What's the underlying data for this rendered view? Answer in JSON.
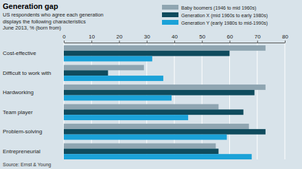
{
  "chart_data": {
    "type": "bar",
    "orientation": "horizontal",
    "title": "Generation gap",
    "subtitle": [
      "US respondents who agree each generation",
      "displays the following characteristics",
      "June 2013, % (born from)"
    ],
    "source": "Source: Ernst & Young",
    "categories": [
      "Cost-effective",
      "Difficult to work with",
      "Hardworking",
      "Team player",
      "Problem-solving",
      "Entrepreneurial"
    ],
    "series": [
      {
        "name": "Baby boomers (1946 to mid 1960s)",
        "color": "#8fa5b1",
        "values": [
          73,
          29,
          73,
          56,
          67,
          55
        ]
      },
      {
        "name": "Generation X (mid 1960s to early 1980s)",
        "color": "#0f4b5d",
        "values": [
          60,
          16,
          69,
          65,
          73,
          56
        ]
      },
      {
        "name": "Generation Y (early 1980s to mid-1990s)",
        "color": "#1ba2d8",
        "values": [
          32,
          36,
          39,
          45,
          59,
          68
        ]
      }
    ],
    "xlim": [
      0,
      80
    ],
    "xticks": [
      0,
      10,
      20,
      30,
      40,
      50,
      60,
      70,
      80
    ],
    "grid": true,
    "legend": "top-right"
  }
}
